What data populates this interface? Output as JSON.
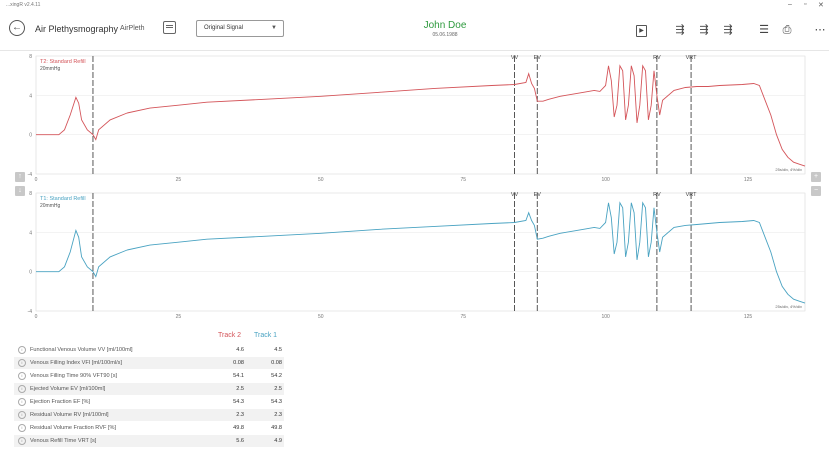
{
  "window": {
    "app_version": "...xingR v2.4.11",
    "minimize": "–",
    "maximize": "▫",
    "close": "✕"
  },
  "toolbar": {
    "title": "Air Plethysmography",
    "subtitle": "AirPleth",
    "signal_select": {
      "selected": "Original Signal"
    },
    "patient_name": "John Doe",
    "patient_date": "05.06.1988"
  },
  "colors": {
    "track2": "#d4555a",
    "track1": "#4aa3c2",
    "patient": "#2e9a3e"
  },
  "chart_data": [
    {
      "type": "line",
      "title": "T2: Standard Refill",
      "unit": "20mmHg",
      "series": [
        {
          "name": "Track 2",
          "color": "#d4555a"
        }
      ],
      "xlim": [
        0,
        135
      ],
      "ylim": [
        -4,
        8
      ],
      "x_ticks": [
        "0",
        "25",
        "50",
        "75",
        "100",
        "125"
      ],
      "y_ticks": [
        "8",
        "4",
        "0",
        "-4"
      ],
      "markers": [
        {
          "label": "",
          "x": 10
        },
        {
          "label": "VV",
          "x": 84
        },
        {
          "label": "EV",
          "x": 88
        },
        {
          "label": "RV",
          "x": 109
        },
        {
          "label": "VRT",
          "x": 115
        }
      ],
      "scale_note": "25s/div, 4%/div",
      "points": [
        [
          0,
          0
        ],
        [
          4,
          0
        ],
        [
          5,
          0.5
        ],
        [
          6,
          2
        ],
        [
          7,
          3.8
        ],
        [
          7.5,
          3.2
        ],
        [
          8,
          1.5
        ],
        [
          9,
          0.5
        ],
        [
          10,
          0
        ],
        [
          10.5,
          -0.5
        ],
        [
          11,
          0.5
        ],
        [
          13,
          1.5
        ],
        [
          16,
          2.2
        ],
        [
          20,
          2.7
        ],
        [
          25,
          3
        ],
        [
          30,
          3.3
        ],
        [
          40,
          3.6
        ],
        [
          50,
          3.9
        ],
        [
          60,
          4.3
        ],
        [
          70,
          4.7
        ],
        [
          80,
          5
        ],
        [
          84,
          5.1
        ],
        [
          86,
          5.3
        ],
        [
          86.5,
          6.2
        ],
        [
          87,
          5.2
        ],
        [
          87.5,
          4.7
        ],
        [
          88,
          3.4
        ],
        [
          89,
          3.4
        ],
        [
          90,
          3.6
        ],
        [
          92,
          3.9
        ],
        [
          96,
          4.3
        ],
        [
          98,
          4.5
        ],
        [
          99,
          4.4
        ],
        [
          100,
          5
        ],
        [
          100.5,
          7
        ],
        [
          101,
          5.5
        ],
        [
          101.5,
          1.8
        ],
        [
          102,
          3
        ],
        [
          102.5,
          7
        ],
        [
          103,
          6.5
        ],
        [
          103.5,
          1.5
        ],
        [
          104,
          3
        ],
        [
          104.5,
          7
        ],
        [
          105,
          6
        ],
        [
          105.5,
          1.2
        ],
        [
          106,
          3
        ],
        [
          106.5,
          7
        ],
        [
          107,
          6.5
        ],
        [
          107.5,
          1.5
        ],
        [
          108,
          3
        ],
        [
          108.5,
          6.5
        ],
        [
          109,
          4
        ],
        [
          109.5,
          2
        ],
        [
          110,
          3.5
        ],
        [
          112,
          4.5
        ],
        [
          114,
          4.8
        ],
        [
          116,
          4.9
        ],
        [
          118,
          4.9
        ],
        [
          120,
          5
        ],
        [
          124,
          5.1
        ],
        [
          126,
          5.2
        ],
        [
          127,
          5
        ],
        [
          128,
          3.5
        ],
        [
          129,
          2
        ],
        [
          130,
          0
        ],
        [
          131,
          -1.5
        ],
        [
          132,
          -2.3
        ],
        [
          133,
          -2.8
        ],
        [
          134,
          -3
        ],
        [
          135,
          -3.2
        ]
      ]
    },
    {
      "type": "line",
      "title": "T1: Standard Refill",
      "unit": "20mmHg",
      "series": [
        {
          "name": "Track 1",
          "color": "#4aa3c2"
        }
      ],
      "xlim": [
        0,
        135
      ],
      "ylim": [
        -4,
        8
      ],
      "x_ticks": [
        "0",
        "25",
        "50",
        "75",
        "100",
        "125"
      ],
      "y_ticks": [
        "8",
        "4",
        "0",
        "-4"
      ],
      "markers": [
        {
          "label": "",
          "x": 10
        },
        {
          "label": "VV",
          "x": 84
        },
        {
          "label": "EV",
          "x": 88
        },
        {
          "label": "RV",
          "x": 109
        },
        {
          "label": "VRT",
          "x": 115
        }
      ],
      "scale_note": "25s/div, 4%/div",
      "points": [
        [
          0,
          0
        ],
        [
          4,
          0
        ],
        [
          5,
          0.5
        ],
        [
          6,
          2
        ],
        [
          7,
          4.2
        ],
        [
          7.5,
          3.5
        ],
        [
          8,
          1.5
        ],
        [
          9,
          0.5
        ],
        [
          10,
          0
        ],
        [
          10.5,
          -0.5
        ],
        [
          11,
          0.5
        ],
        [
          13,
          1.5
        ],
        [
          16,
          2.2
        ],
        [
          20,
          2.7
        ],
        [
          25,
          3
        ],
        [
          30,
          3.3
        ],
        [
          40,
          3.6
        ],
        [
          50,
          3.9
        ],
        [
          60,
          4.3
        ],
        [
          70,
          4.6
        ],
        [
          80,
          4.9
        ],
        [
          84,
          5
        ],
        [
          86,
          5.2
        ],
        [
          86.5,
          6
        ],
        [
          87,
          5.2
        ],
        [
          87.5,
          4.7
        ],
        [
          88,
          3.3
        ],
        [
          89,
          3.4
        ],
        [
          90,
          3.6
        ],
        [
          92,
          3.9
        ],
        [
          96,
          4.3
        ],
        [
          98,
          4.5
        ],
        [
          99,
          4.4
        ],
        [
          100,
          5
        ],
        [
          100.5,
          7
        ],
        [
          101,
          5.5
        ],
        [
          101.5,
          1.8
        ],
        [
          102,
          3
        ],
        [
          102.5,
          7
        ],
        [
          103,
          6.5
        ],
        [
          103.5,
          1.5
        ],
        [
          104,
          3
        ],
        [
          104.5,
          7
        ],
        [
          105,
          6
        ],
        [
          105.5,
          1.2
        ],
        [
          106,
          3
        ],
        [
          106.5,
          7
        ],
        [
          107,
          6.5
        ],
        [
          107.5,
          1.5
        ],
        [
          108,
          3
        ],
        [
          108.5,
          6.5
        ],
        [
          109,
          4
        ],
        [
          109.5,
          2
        ],
        [
          110,
          3.5
        ],
        [
          112,
          4.5
        ],
        [
          114,
          4.7
        ],
        [
          116,
          4.8
        ],
        [
          118,
          4.9
        ],
        [
          120,
          5
        ],
        [
          124,
          5.1
        ],
        [
          126,
          5.2
        ],
        [
          127,
          5
        ],
        [
          128,
          3.5
        ],
        [
          129,
          2
        ],
        [
          130,
          0
        ],
        [
          131,
          -1.5
        ],
        [
          132,
          -2.3
        ],
        [
          133,
          -2.8
        ],
        [
          134,
          -3
        ],
        [
          135,
          -3.2
        ]
      ]
    }
  ],
  "results": {
    "headers": {
      "track2": "Track 2",
      "track1": "Track 1"
    },
    "rows": [
      {
        "label": "Functional Venous Volume VV [ml/100ml]",
        "track2": "4.6",
        "track1": "4.5"
      },
      {
        "label": "Venous Filling Index VFI [ml/100ml/s]",
        "track2": "0.08",
        "track1": "0.08"
      },
      {
        "label": "Venous Filling Time 90% VFT90 [s]",
        "track2": "54.1",
        "track1": "54.2"
      },
      {
        "label": "Ejected Volume EV [ml/100ml]",
        "track2": "2.5",
        "track1": "2.5"
      },
      {
        "label": "Ejection Fraction EF [%]",
        "track2": "54.3",
        "track1": "54.3"
      },
      {
        "label": "Residual Volume RV [ml/100ml]",
        "track2": "2.3",
        "track1": "2.3"
      },
      {
        "label": "Residual Volume Fraction RVF [%]",
        "track2": "49.8",
        "track1": "49.8"
      },
      {
        "label": "Venous Refill Time VRT [s]",
        "track2": "5.6",
        "track1": "4.9"
      }
    ]
  }
}
